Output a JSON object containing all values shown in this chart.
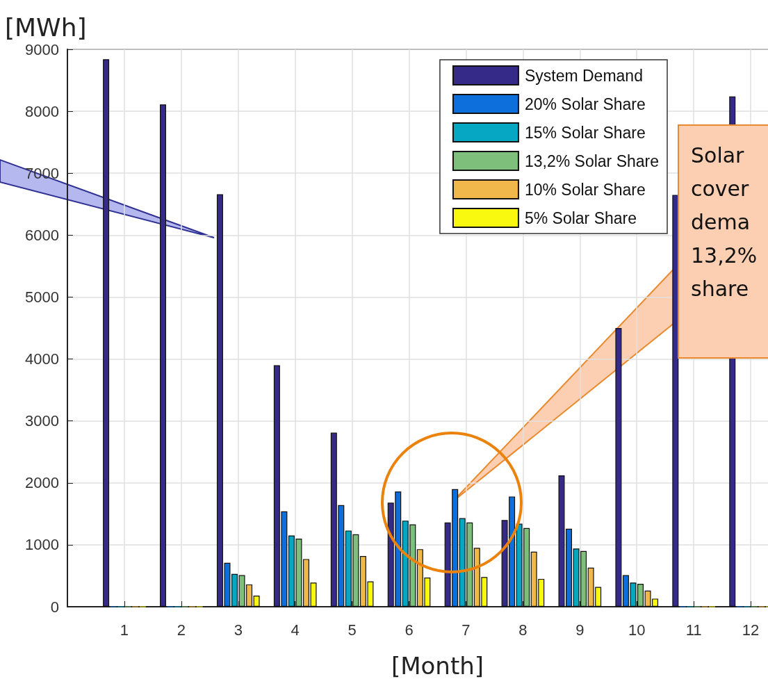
{
  "chart_data": {
    "type": "bar",
    "ylabel": "[MWh]",
    "xlabel": "[Month]",
    "x": [
      1,
      2,
      3,
      4,
      5,
      6,
      7,
      8,
      9,
      10,
      11,
      12
    ],
    "xlim": [
      0,
      13
    ],
    "xticks": [
      1,
      2,
      3,
      4,
      5,
      6,
      7,
      8,
      9,
      10,
      11,
      12
    ],
    "ylim": [
      0,
      9000
    ],
    "yticks": [
      0,
      1000,
      2000,
      3000,
      4000,
      5000,
      6000,
      7000,
      8000,
      9000
    ],
    "grid": true,
    "legend": "top right",
    "series": [
      {
        "name": "System Demand",
        "color": "#352a87",
        "values": [
          8840,
          8110,
          6660,
          3900,
          2810,
          1680,
          1360,
          1400,
          2120,
          4500,
          6650,
          8240
        ]
      },
      {
        "name": "20% Solar Share",
        "color": "#0d6fdc",
        "values": [
          0,
          0,
          710,
          1540,
          1640,
          1860,
          1900,
          1780,
          1260,
          510,
          0,
          0
        ]
      },
      {
        "name": "15% Solar Share",
        "color": "#06a7c3",
        "values": [
          0,
          0,
          530,
          1150,
          1230,
          1390,
          1430,
          1340,
          940,
          390,
          0,
          0
        ]
      },
      {
        "name": "13,2% Solar Share",
        "color": "#7dbf7b",
        "values": [
          0,
          0,
          510,
          1100,
          1170,
          1330,
          1360,
          1270,
          900,
          370,
          0,
          0
        ]
      },
      {
        "name": "10% Solar Share",
        "color": "#f0b84b",
        "values": [
          0,
          0,
          360,
          770,
          820,
          930,
          950,
          890,
          630,
          260,
          0,
          0
        ]
      },
      {
        "name": "5% Solar Share",
        "color": "#f9f90f",
        "values": [
          0,
          0,
          180,
          390,
          410,
          470,
          480,
          450,
          320,
          130,
          0,
          0
        ]
      }
    ],
    "annotations": [
      "Solar\ncover\ndema\n13,2%\nshare"
    ]
  }
}
